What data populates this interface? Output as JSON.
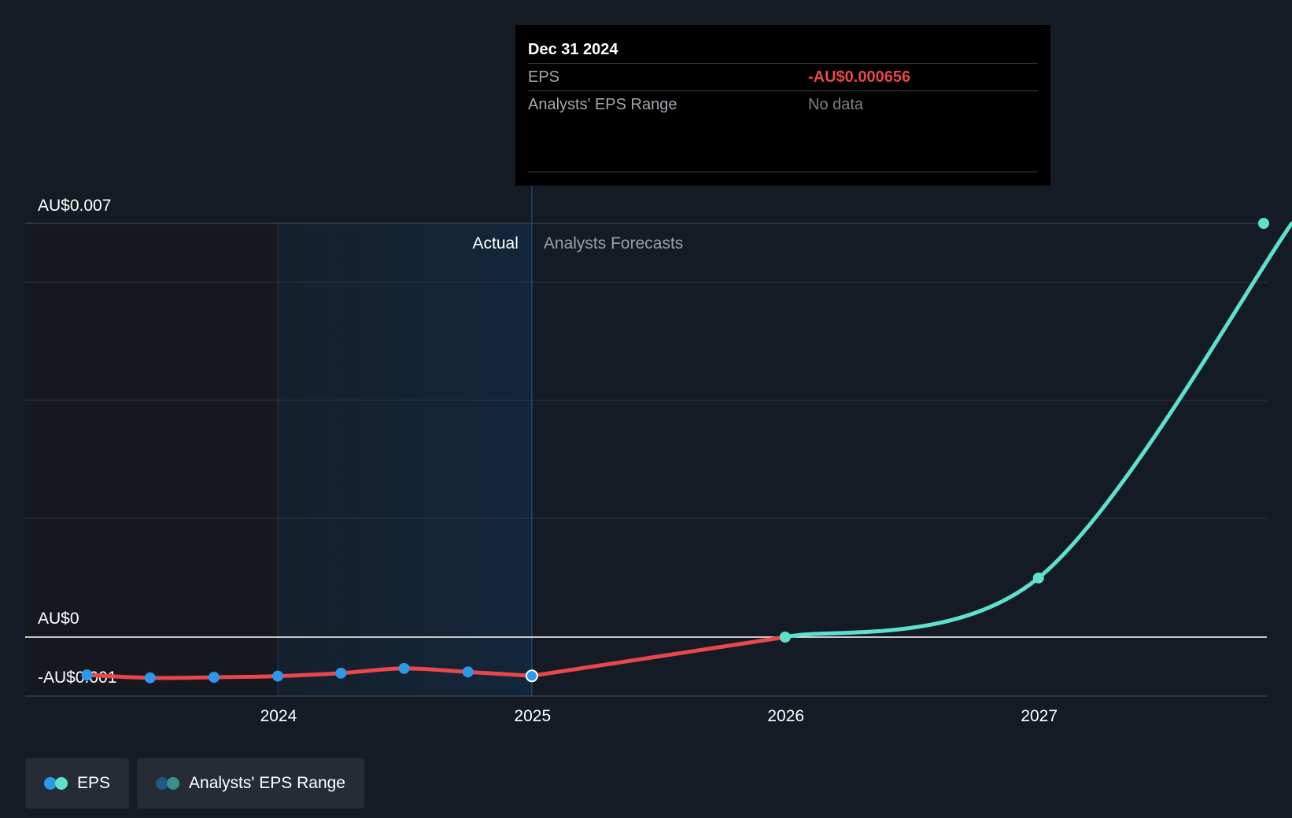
{
  "colors": {
    "background": "#151b24",
    "actual_line": "#e8474b",
    "forecast_line": "#5ee0cf",
    "actual_point": "#2d97e8",
    "forecast_point": "#5ee0cf",
    "highlight_band": "#13263a",
    "gridline": "#2e3540",
    "zero_line": "#ffffff"
  },
  "chart_data": {
    "type": "line",
    "title": "",
    "xlabel": "",
    "ylabel": "",
    "x_ticks": [
      "2024",
      "2025",
      "2026",
      "2027"
    ],
    "y_tick_labels": [
      {
        "value": 0.007,
        "label": "AU$0.007"
      },
      {
        "value": 0,
        "label": "AU$0"
      },
      {
        "value": -0.001,
        "label": "-AU$0.001"
      }
    ],
    "ylim": [
      -0.001,
      0.007
    ],
    "xlim": [
      "2023-01-01",
      "2027-11-25"
    ],
    "grid": true,
    "region_labels": {
      "actual": "Actual",
      "forecast": "Analysts Forecasts"
    },
    "series": [
      {
        "name": "EPS",
        "kind": "actual",
        "points": [
          {
            "x": "2023-03-31",
            "y": -0.00064
          },
          {
            "x": "2023-06-30",
            "y": -0.00069
          },
          {
            "x": "2023-09-30",
            "y": -0.00068
          },
          {
            "x": "2023-12-31",
            "y": -0.00066
          },
          {
            "x": "2024-03-31",
            "y": -0.00061
          },
          {
            "x": "2024-06-30",
            "y": -0.00053
          },
          {
            "x": "2024-09-30",
            "y": -0.00059
          },
          {
            "x": "2024-12-31",
            "y": -0.000656
          }
        ]
      },
      {
        "name": "EPS",
        "kind": "forecast",
        "points": [
          {
            "x": "2024-12-31",
            "y": -0.000656
          },
          {
            "x": "2025-12-31",
            "y": 0.0
          },
          {
            "x": "2026-12-31",
            "y": 0.001
          },
          {
            "x": "2027-12-31",
            "y": 0.007
          }
        ]
      }
    ],
    "highlight": {
      "from": "2023-12-31",
      "to": "2024-12-31"
    },
    "legend": {
      "position": "bottom-left",
      "items": [
        {
          "label": "EPS",
          "colors": [
            "#2d97e8",
            "#5ee0cf"
          ]
        },
        {
          "label": "Analysts' EPS Range",
          "colors": [
            "#1e5a86",
            "#3b8f86"
          ]
        }
      ]
    }
  },
  "tooltip": {
    "date": "Dec 31 2024",
    "rows": [
      {
        "label": "EPS",
        "value": "-AU$0.000656"
      },
      {
        "label": "Analysts' EPS Range",
        "value": "No data"
      }
    ]
  }
}
